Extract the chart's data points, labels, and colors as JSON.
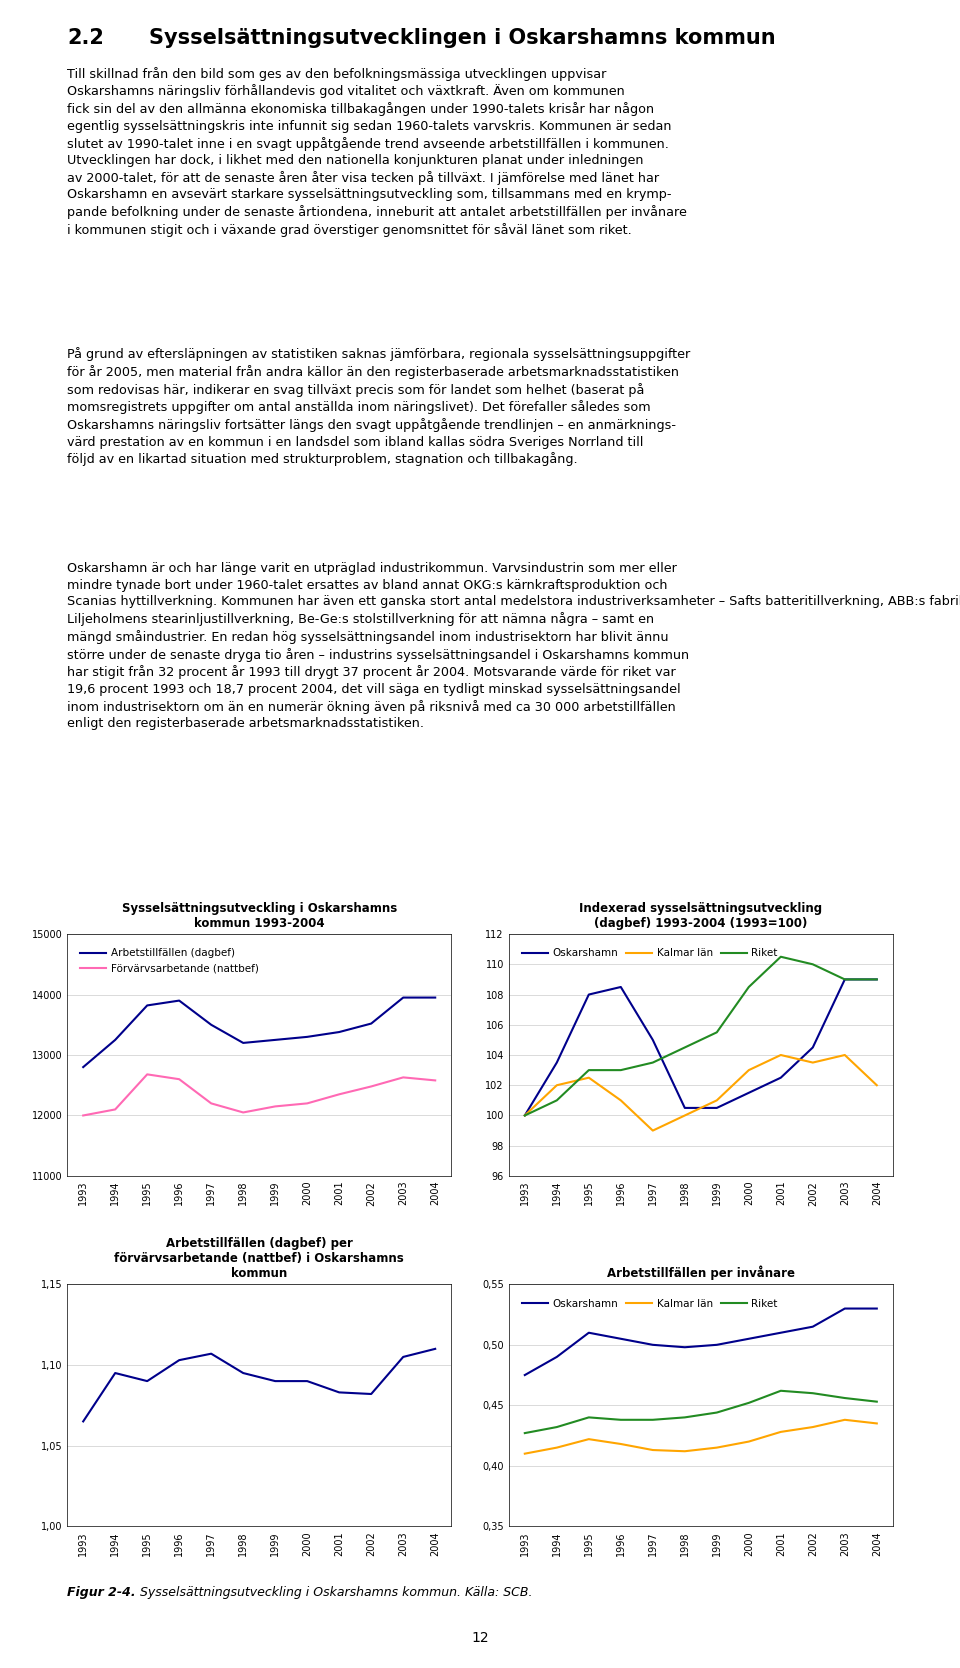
{
  "years": [
    1993,
    1994,
    1995,
    1996,
    1997,
    1998,
    1999,
    2000,
    2001,
    2002,
    2003,
    2004
  ],
  "chart1_title": "Sysselsättningsutveckling i Oskarshamns\nkommun 1993-2004",
  "chart1_legend1": "Arbetstillfällen (dagbef)",
  "chart1_legend2": "Förvärvsarbetande (nattbef)",
  "chart1_dagbef": [
    12800,
    13250,
    13820,
    13900,
    13500,
    13200,
    13250,
    13300,
    13380,
    13520,
    13950,
    13950
  ],
  "chart1_nattbef": [
    12000,
    12100,
    12680,
    12600,
    12200,
    12050,
    12150,
    12200,
    12350,
    12480,
    12630,
    12580
  ],
  "chart1_ylim": [
    11000,
    15000
  ],
  "chart1_yticks": [
    11000,
    12000,
    13000,
    14000,
    15000
  ],
  "chart2_title": "Indexerad sysselsättningsutveckling\n(dagbef) 1993-2004 (1993=100)",
  "chart2_legend1": "Oskarshamn",
  "chart2_legend2": "Kalmar län",
  "chart2_legend3": "Riket",
  "chart2_oskarshamn": [
    100,
    103.5,
    108.0,
    108.5,
    105.0,
    100.5,
    100.5,
    101.5,
    102.5,
    104.5,
    109.0,
    109.0
  ],
  "chart2_kalmar": [
    100,
    102.0,
    102.5,
    101.0,
    99.0,
    100.0,
    101.0,
    103.0,
    104.0,
    103.5,
    104.0,
    102.0
  ],
  "chart2_riket": [
    100,
    101.0,
    103.0,
    103.0,
    103.5,
    104.5,
    105.5,
    108.5,
    110.5,
    110.0,
    109.0,
    109.0
  ],
  "chart2_ylim": [
    96,
    112
  ],
  "chart2_yticks": [
    96,
    98,
    100,
    102,
    104,
    106,
    108,
    110,
    112
  ],
  "chart3_title": "Arbetstillfällen (dagbef) per\nförvärvsarbetande (nattbef) i Oskarshamns\nkommun",
  "chart3_data": [
    1.065,
    1.095,
    1.09,
    1.103,
    1.107,
    1.095,
    1.09,
    1.09,
    1.083,
    1.082,
    1.105,
    1.11
  ],
  "chart3_ylim": [
    1.0,
    1.15
  ],
  "chart3_yticks": [
    1.0,
    1.05,
    1.1,
    1.15
  ],
  "chart4_title": "Arbetstillfällen per invånare",
  "chart4_legend1": "Oskarshamn",
  "chart4_legend2": "Kalmar län",
  "chart4_legend3": "Riket",
  "chart4_oskarshamn": [
    0.475,
    0.49,
    0.51,
    0.505,
    0.5,
    0.498,
    0.5,
    0.505,
    0.51,
    0.515,
    0.53,
    0.53
  ],
  "chart4_kalmar": [
    0.41,
    0.415,
    0.422,
    0.418,
    0.413,
    0.412,
    0.415,
    0.42,
    0.428,
    0.432,
    0.438,
    0.435
  ],
  "chart4_riket": [
    0.427,
    0.432,
    0.44,
    0.438,
    0.438,
    0.44,
    0.444,
    0.452,
    0.462,
    0.46,
    0.456,
    0.453
  ],
  "chart4_ylim": [
    0.35,
    0.55
  ],
  "chart4_yticks": [
    0.35,
    0.4,
    0.45,
    0.5,
    0.55
  ],
  "color_blue": "#00008B",
  "color_pink": "#FF69B4",
  "color_orange": "#FFA500",
  "color_green": "#228B22",
  "title_fontsize": 8.5,
  "legend_fontsize": 7.5,
  "tick_fontsize": 7,
  "page_title_number": "2.2",
  "page_title_text": "Sysselsättningsutvecklingen i Oskarshamns kommun",
  "para1": "Till skillnad från den bild som ges av den befolkningsmässiga utvecklingen uppvisar\nOskarshamns näringsliv förhållandevis god vitalitet och växtkraft. Även om kommunen\nfick sin del av den allmänna ekonomiska tillbakagången under 1990-talets krisår har någon\negentlig sysselsättningskris inte infunnit sig sedan 1960-talets varvskris. Kommunen är sedan\nslutet av 1990-talet inne i en svagt uppåtgående trend avseende arbetstillfällen i kommunen.\nUtvecklingen har dock, i likhet med den nationella konjunkturen planat under inledningen\nav 2000-talet, för att de senaste åren åter visa tecken på tillväxt. I jämförelse med länet har\nOskarshamn en avsevärt starkare sysselsättningsutveckling som, tillsammans med en krymp-\npande befolkning under de senaste årtiondena, inneburit att antalet arbetstillfällen per invånare\ni kommunen stigit och i växande grad överstiger genomsnittet för såväl länet som riket.",
  "para2": "På grund av eftersläpningen av statistiken saknas jämförbara, regionala sysselsättningsuppgifter\nför år 2005, men material från andra källor än den registerbaserade arbetsmarknadsstatistiken\nsom redovisas här, indikerar en svag tillväxt precis som för landet som helhet (baserat på\nmomsregistrets uppgifter om antal anställda inom näringslivet). Det förefaller således som\nOskarshamns näringsliv fortsätter längs den svagt uppåtgående trendlinjen – en anmärknings-\nvärd prestation av en kommun i en landsdel som ibland kallas södra Sveriges Norrland till\nföljd av en likartad situation med strukturproblem, stagnation och tillbakagång.",
  "para3": "Oskarshamn är och har länge varit en utpräglad industrikommun. Varvsindustrin som mer eller\nmindre tynade bort under 1960-talet ersattes av bland annat OKG:s kärnkraftsproduktion och\nScanias hyttillverkning. Kommunen har även ett ganska stort antal medelstora industriverksamheter – Safts batteritillverkning, ABB:s fabrik för isolermaterial, OP-Kuverts pappersförädling,\nLiljeholmens stearinljustillverkning, Be-Ge:s stolstillverkning för att nämna några – samt en\nmängd småindustrier. En redan hög sysselsättningsandel inom industrisektorn har blivit ännu\nstörre under de senaste dryga tio åren – industrins sysselsättningsandel i Oskarshamns kommun\nhar stigit från 32 procent år 1993 till drygt 37 procent år 2004. Motsvarande värde för riket var\n19,6 procent 1993 och 18,7 procent 2004, det vill säga en tydligt minskad sysselsättningsandel\ninom industrisektorn om än en numerär ökning även på riksnivå med ca 30 000 arbetstillfällen\nenligt den registerbaserade arbetsmarknadsstatistiken.",
  "caption_bold": "Figur 2-4.",
  "caption_italic": "  Sysselsättningsutveckling i Oskarshamns kommun. Källa: SCB.",
  "page_number": "12"
}
